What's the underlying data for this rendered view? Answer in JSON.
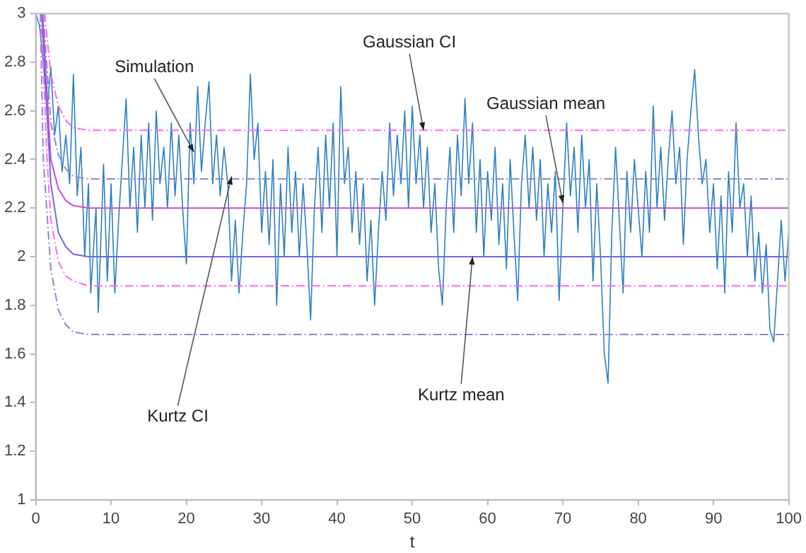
{
  "chart_data": {
    "type": "line",
    "xlabel": "t",
    "xlim": [
      0,
      100
    ],
    "xticks": [
      0,
      10,
      20,
      30,
      40,
      50,
      60,
      70,
      80,
      90,
      100
    ],
    "ylim": [
      1,
      3
    ],
    "yticks": [
      1,
      {
        "value": 1.2,
        "label": "1.2"
      },
      {
        "value": 1.4,
        "label": "1.4"
      },
      {
        "value": 1.6,
        "label": "1.6"
      },
      {
        "value": 1.8,
        "label": "1.8"
      },
      2,
      {
        "value": 2.2,
        "label": "2.2"
      },
      {
        "value": 2.4,
        "label": "2.4"
      },
      {
        "value": 2.6,
        "label": "2.6"
      },
      {
        "value": 2.8,
        "label": "2.8"
      },
      3
    ],
    "grid": false,
    "legend": false,
    "marker": "none",
    "series": [
      {
        "color": "#ff66ff",
        "line_style": "dashed",
        "x": [
          1.2,
          2,
          3,
          4,
          5,
          7,
          100
        ],
        "values": [
          3,
          2.75,
          2.62,
          2.56,
          2.53,
          2.52,
          2.52
        ]
      },
      {
        "color": "#8a8ac8",
        "line_style": "dashed",
        "x": [
          1,
          2,
          3,
          4,
          5,
          7,
          100
        ],
        "values": [
          3,
          2.55,
          2.42,
          2.36,
          2.33,
          2.32,
          2.32
        ]
      },
      {
        "color": "#c050d0",
        "line_style": "solid",
        "x": [
          0.9,
          2,
          3,
          4,
          5,
          7,
          100
        ],
        "values": [
          3,
          2.4,
          2.28,
          2.23,
          2.21,
          2.2,
          2.2
        ]
      },
      {
        "color": "#6a6ae0",
        "line_style": "solid",
        "x": [
          0.8,
          2,
          3,
          4,
          5,
          7,
          100
        ],
        "values": [
          3,
          2.3,
          2.1,
          2.04,
          2.01,
          2,
          2
        ]
      },
      {
        "color": "#ff66ff",
        "line_style": "dashed",
        "x": [
          0.7,
          1.5,
          2,
          3,
          4,
          5,
          7,
          100
        ],
        "values": [
          3,
          2.4,
          2.15,
          1.98,
          1.92,
          1.9,
          1.88,
          1.88
        ]
      },
      {
        "color": "#8a8ac8",
        "line_style": "dashed",
        "x": [
          0.6,
          1,
          2,
          3,
          4,
          5,
          7,
          100
        ],
        "values": [
          3,
          2.4,
          1.95,
          1.78,
          1.72,
          1.69,
          1.68,
          1.68
        ]
      },
      {
        "color": "#2e7fbf",
        "line_style": "solid",
        "x": [
          0,
          0.5,
          1,
          1.5,
          2,
          2.5,
          3,
          3.5,
          4,
          4.5,
          5,
          5.5,
          6,
          6.5,
          7,
          7.3,
          8,
          8.3,
          9,
          9.5,
          10,
          10.5,
          11,
          11.5,
          12,
          12.5,
          13,
          13.5,
          14,
          14.5,
          15,
          15.5,
          16,
          16.5,
          17,
          17.5,
          18,
          18.5,
          19,
          19.5,
          20,
          20.5,
          21,
          21.5,
          22,
          22.5,
          23,
          23.5,
          24,
          24.5,
          25,
          25.5,
          26,
          26.5,
          27,
          27.5,
          28,
          28.5,
          29,
          29.5,
          30,
          30.5,
          31,
          31.5,
          32,
          32.5,
          33,
          33.5,
          34,
          34.5,
          35,
          35.5,
          36,
          36.5,
          37,
          37.5,
          38,
          38.5,
          39,
          39.5,
          40,
          40.5,
          41,
          41.5,
          42,
          42.5,
          43,
          43.5,
          44,
          44.5,
          45,
          45.5,
          46,
          46.5,
          47,
          47.5,
          48,
          48.5,
          49,
          49.5,
          50,
          50.5,
          51,
          51.5,
          52,
          52.5,
          53,
          53.5,
          54,
          54.5,
          55,
          55.5,
          56,
          56.5,
          57,
          57.5,
          58,
          58.5,
          59,
          59.5,
          60,
          60.5,
          61,
          61.5,
          62,
          62.5,
          63,
          63.5,
          64,
          64.5,
          65,
          65.5,
          66,
          66.5,
          67,
          67.5,
          68,
          68.5,
          69,
          69.5,
          70,
          70.5,
          71,
          71.5,
          72,
          72.5,
          73,
          73.5,
          74,
          74.5,
          75,
          75.5,
          76,
          76.5,
          77,
          77.5,
          78,
          78.5,
          79,
          79.5,
          80,
          80.5,
          81,
          81.5,
          82,
          82.5,
          83,
          83.5,
          84,
          84.5,
          85,
          85.5,
          86,
          86.5,
          87,
          87.5,
          88,
          88.5,
          89,
          89.5,
          90,
          90.5,
          91,
          91.5,
          92,
          92.5,
          93,
          93.5,
          94,
          94.5,
          95,
          95.5,
          96,
          96.5,
          97,
          97.5,
          98,
          98.5,
          99,
          99.5,
          100
        ],
        "values": [
          3,
          2.95,
          2.8,
          2.6,
          2.78,
          2.5,
          2.62,
          2.35,
          2.5,
          2.3,
          2.75,
          2.25,
          2.45,
          2.0,
          2.3,
          1.85,
          2.2,
          1.77,
          2.38,
          1.9,
          2.3,
          1.85,
          2.15,
          2.4,
          2.65,
          2.2,
          2.45,
          2.1,
          2.5,
          2.2,
          2.55,
          2.15,
          2.6,
          2.3,
          2.45,
          2.2,
          2.55,
          2.25,
          2.5,
          2.2,
          1.97,
          2.55,
          2.3,
          2.7,
          2.35,
          2.55,
          2.72,
          2.3,
          2.5,
          2.25,
          2.45,
          2.3,
          1.9,
          2.15,
          1.85,
          2.1,
          2.3,
          2.75,
          2.4,
          2.55,
          2.1,
          2.35,
          2.05,
          2.4,
          1.8,
          2.3,
          2.0,
          2.45,
          2.1,
          2.35,
          2.0,
          2.3,
          2.05,
          1.74,
          2.2,
          2.45,
          2.1,
          2.5,
          2.2,
          2.55,
          2.0,
          2.7,
          2.3,
          2.45,
          2.1,
          2.35,
          2.05,
          2.3,
          1.9,
          2.15,
          1.8,
          2.1,
          2.35,
          2.15,
          2.55,
          2.25,
          2.5,
          2.3,
          2.6,
          2.2,
          2.62,
          2.3,
          2.5,
          2.2,
          2.45,
          2.1,
          2.3,
          1.95,
          1.8,
          2.2,
          2.45,
          2.1,
          2.5,
          2.25,
          2.65,
          2.3,
          2.55,
          2.1,
          2.4,
          2.0,
          2.35,
          2.15,
          2.45,
          2.05,
          2.3,
          1.95,
          2.4,
          2.1,
          1.82,
          2.3,
          2.5,
          2.2,
          2.45,
          2.15,
          2.4,
          2.0,
          2.3,
          2.1,
          2.35,
          1.82,
          2.2,
          2.55,
          2.25,
          2.45,
          2.1,
          2.5,
          2.2,
          2.4,
          1.9,
          2.3,
          2.0,
          1.6,
          1.48,
          2.1,
          2.45,
          2.15,
          1.85,
          2.35,
          2.1,
          2.4,
          2.2,
          2.0,
          2.35,
          2.1,
          2.62,
          2.2,
          2.45,
          2.15,
          2.4,
          2.6,
          2.3,
          2.45,
          2.05,
          2.4,
          2.6,
          2.77,
          2.5,
          2.3,
          2.4,
          2.1,
          2.3,
          1.95,
          2.25,
          1.85,
          2.35,
          2.1,
          2.55,
          2.2,
          2.3,
          2.0,
          2.25,
          1.9,
          2.1,
          1.85,
          2.05,
          1.7,
          1.65,
          1.9,
          2.15,
          1.9,
          2.1
        ]
      }
    ],
    "annotations": [
      {
        "text": "Simulation",
        "x": 21,
        "y": 2.43
      },
      {
        "text": "Gaussian CI",
        "x": 51.5,
        "y": 2.52
      },
      {
        "text": "Gaussian mean",
        "x": 70,
        "y": 2.22
      },
      {
        "text": "Kurtz CI",
        "x": 26,
        "y": 2.33
      },
      {
        "text": "Kurtz mean",
        "x": 58,
        "y": 2.0
      }
    ]
  }
}
